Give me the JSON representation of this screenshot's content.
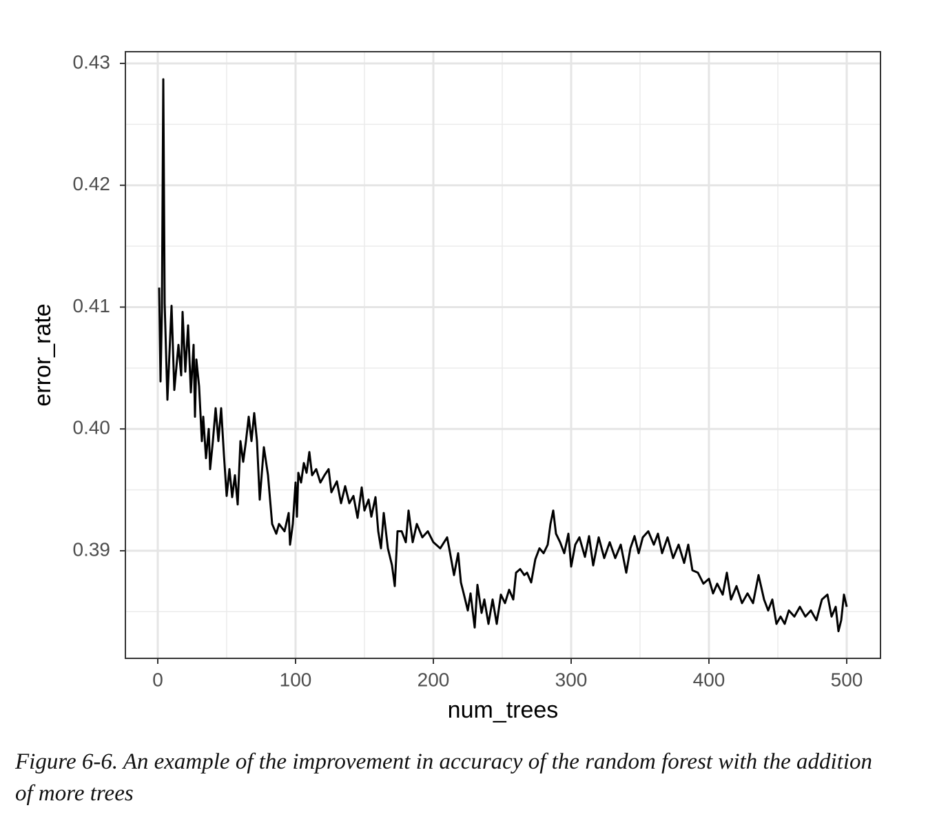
{
  "chart_data": {
    "type": "line",
    "xlabel": "num_trees",
    "ylabel": "error_rate",
    "caption": "Figure 6-6. An example of the improvement in accuracy of the random forest with the addition of more trees",
    "x": [
      1,
      2,
      3,
      4,
      5,
      7,
      10,
      12,
      15,
      17,
      18,
      20,
      22,
      24,
      26,
      27,
      28,
      30,
      32,
      33,
      35,
      37,
      38,
      40,
      42,
      44,
      46,
      48,
      50,
      52,
      54,
      56,
      58,
      60,
      62,
      64,
      66,
      68,
      70,
      72,
      74,
      77,
      80,
      83,
      86,
      88,
      92,
      95,
      96,
      98,
      100,
      101,
      102,
      104,
      106,
      108,
      110,
      112,
      115,
      118,
      121,
      124,
      126,
      130,
      133,
      136,
      139,
      142,
      145,
      148,
      150,
      153,
      155,
      158,
      160,
      162,
      164,
      167,
      170,
      172,
      174,
      177,
      180,
      182,
      185,
      188,
      192,
      196,
      200,
      205,
      210,
      212,
      215,
      218,
      220,
      222,
      225,
      227,
      230,
      232,
      235,
      237,
      240,
      243,
      246,
      249,
      252,
      255,
      258,
      260,
      263,
      266,
      268,
      271,
      274,
      277,
      280,
      283,
      285,
      287,
      289,
      292,
      295,
      298,
      300,
      303,
      306,
      310,
      313,
      316,
      320,
      324,
      328,
      332,
      336,
      340,
      343,
      346,
      349,
      352,
      356,
      360,
      363,
      366,
      370,
      374,
      378,
      382,
      385,
      388,
      392,
      396,
      400,
      403,
      406,
      410,
      413,
      416,
      420,
      424,
      428,
      432,
      436,
      440,
      443,
      446,
      449,
      452,
      455,
      458,
      462,
      466,
      470,
      474,
      478,
      482,
      486,
      489,
      492,
      494,
      496,
      498,
      500
    ],
    "values": [
      0.4116,
      0.4039,
      0.4097,
      0.4287,
      0.4103,
      0.4024,
      0.4101,
      0.4032,
      0.4069,
      0.4044,
      0.4096,
      0.4047,
      0.4085,
      0.403,
      0.4069,
      0.401,
      0.4057,
      0.4035,
      0.399,
      0.401,
      0.3976,
      0.4,
      0.3967,
      0.399,
      0.4017,
      0.399,
      0.4017,
      0.3979,
      0.3945,
      0.3967,
      0.3944,
      0.3962,
      0.3938,
      0.399,
      0.3973,
      0.399,
      0.401,
      0.399,
      0.4013,
      0.399,
      0.3942,
      0.3985,
      0.3962,
      0.3922,
      0.3914,
      0.3922,
      0.3916,
      0.3931,
      0.3905,
      0.3922,
      0.3956,
      0.3928,
      0.3964,
      0.3956,
      0.3972,
      0.3964,
      0.3981,
      0.3962,
      0.3967,
      0.3956,
      0.3962,
      0.3967,
      0.3948,
      0.3957,
      0.3939,
      0.3953,
      0.3939,
      0.3945,
      0.3927,
      0.3952,
      0.3933,
      0.3942,
      0.3928,
      0.3944,
      0.3916,
      0.3902,
      0.3931,
      0.3902,
      0.3888,
      0.3871,
      0.3916,
      0.3916,
      0.3907,
      0.3933,
      0.3907,
      0.3922,
      0.3911,
      0.3916,
      0.3907,
      0.3902,
      0.3911,
      0.3899,
      0.388,
      0.3898,
      0.3874,
      0.3865,
      0.3851,
      0.3865,
      0.3837,
      0.3872,
      0.3849,
      0.386,
      0.384,
      0.386,
      0.384,
      0.3864,
      0.3857,
      0.3868,
      0.386,
      0.3882,
      0.3885,
      0.388,
      0.3882,
      0.3874,
      0.3893,
      0.3902,
      0.3898,
      0.3905,
      0.3922,
      0.3933,
      0.3914,
      0.3907,
      0.3898,
      0.3914,
      0.3887,
      0.3905,
      0.3911,
      0.3895,
      0.3912,
      0.3888,
      0.3911,
      0.3894,
      0.3907,
      0.3894,
      0.3905,
      0.3882,
      0.3902,
      0.3912,
      0.3898,
      0.3911,
      0.3916,
      0.3905,
      0.3914,
      0.3898,
      0.3911,
      0.3894,
      0.3905,
      0.389,
      0.3905,
      0.3884,
      0.3882,
      0.3873,
      0.3877,
      0.3865,
      0.3873,
      0.3864,
      0.3882,
      0.386,
      0.3871,
      0.3857,
      0.3865,
      0.3857,
      0.388,
      0.386,
      0.3851,
      0.386,
      0.384,
      0.3846,
      0.384,
      0.3851,
      0.3846,
      0.3854,
      0.3846,
      0.3851,
      0.3843,
      0.386,
      0.3864,
      0.3846,
      0.3854,
      0.3834,
      0.3843,
      0.3864,
      0.3854
    ],
    "color": "#000000",
    "xlim": [
      -23.5,
      524.5
    ],
    "ylim": [
      0.38117,
      0.43096
    ],
    "xticks": [
      0,
      100,
      200,
      300,
      400,
      500
    ],
    "yticks": [
      {
        "value": 0.39,
        "label": "0.39"
      },
      {
        "value": 0.4,
        "label": "0.40"
      },
      {
        "value": 0.41,
        "label": "0.41"
      },
      {
        "value": 0.42,
        "label": "0.42"
      },
      {
        "value": 0.43,
        "label": "0.43"
      }
    ],
    "x_minor_breaks": [
      50,
      150,
      250,
      350,
      450
    ],
    "y_minor_breaks": [
      0.385,
      0.395,
      0.405,
      0.415,
      0.425
    ],
    "grid": true
  }
}
